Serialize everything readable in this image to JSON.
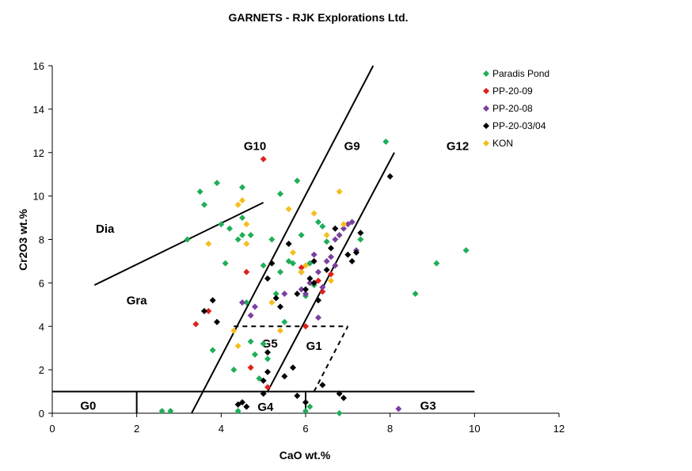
{
  "chart_data": {
    "type": "scatter",
    "title": "GARNETS - RJK Explorations Ltd.",
    "xlabel": "CaO wt.%",
    "ylabel": "Cr2O3 wt.%",
    "xlim": [
      0,
      12
    ],
    "ylim": [
      0,
      16
    ],
    "x_ticks": [
      0,
      2,
      4,
      6,
      8,
      10,
      12
    ],
    "y_ticks": [
      0,
      2,
      4,
      6,
      8,
      10,
      12,
      14,
      16
    ],
    "grid": false,
    "legend_position": "top-right",
    "series": [
      {
        "name": "Paradis Pond",
        "color": "#1fae56",
        "points": [
          [
            2.6,
            0.1
          ],
          [
            2.8,
            0.1
          ],
          [
            3.2,
            8.0
          ],
          [
            3.5,
            10.2
          ],
          [
            3.6,
            9.6
          ],
          [
            3.8,
            2.9
          ],
          [
            3.9,
            10.6
          ],
          [
            4.0,
            8.7
          ],
          [
            4.1,
            6.9
          ],
          [
            4.2,
            8.5
          ],
          [
            4.3,
            2.0
          ],
          [
            4.4,
            0.1
          ],
          [
            4.4,
            8.0
          ],
          [
            4.5,
            8.2
          ],
          [
            4.5,
            10.4
          ],
          [
            4.5,
            9.0
          ],
          [
            4.6,
            5.1
          ],
          [
            4.7,
            8.2
          ],
          [
            4.7,
            3.3
          ],
          [
            4.8,
            2.7
          ],
          [
            4.9,
            1.6
          ],
          [
            5.0,
            6.8
          ],
          [
            5.0,
            3.2
          ],
          [
            5.1,
            2.5
          ],
          [
            5.2,
            8.0
          ],
          [
            5.3,
            5.5
          ],
          [
            5.4,
            6.5
          ],
          [
            5.4,
            10.1
          ],
          [
            5.5,
            4.2
          ],
          [
            5.6,
            7.0
          ],
          [
            5.7,
            6.9
          ],
          [
            5.8,
            10.7
          ],
          [
            5.9,
            8.2
          ],
          [
            6.0,
            5.4
          ],
          [
            6.0,
            0.1
          ],
          [
            6.1,
            6.9
          ],
          [
            6.1,
            0.3
          ],
          [
            6.2,
            5.9
          ],
          [
            6.3,
            8.8
          ],
          [
            6.4,
            8.6
          ],
          [
            6.5,
            7.9
          ],
          [
            6.8,
            0.0
          ],
          [
            7.3,
            8.0
          ],
          [
            7.9,
            12.5
          ],
          [
            8.6,
            5.5
          ],
          [
            9.1,
            6.9
          ],
          [
            9.8,
            7.5
          ]
        ]
      },
      {
        "name": "PP-20-09",
        "color": "#e0201c",
        "points": [
          [
            3.4,
            4.1
          ],
          [
            3.7,
            4.7
          ],
          [
            4.6,
            6.5
          ],
          [
            4.7,
            2.1
          ],
          [
            5.0,
            11.7
          ],
          [
            5.1,
            1.2
          ],
          [
            5.9,
            6.7
          ],
          [
            6.0,
            4.0
          ],
          [
            6.3,
            6.1
          ],
          [
            6.4,
            5.6
          ],
          [
            6.6,
            6.4
          ]
        ]
      },
      {
        "name": "PP-20-08",
        "color": "#7a3fa0",
        "points": [
          [
            4.5,
            5.1
          ],
          [
            4.7,
            4.5
          ],
          [
            4.8,
            4.9
          ],
          [
            5.5,
            5.5
          ],
          [
            5.9,
            5.7
          ],
          [
            6.1,
            6.0
          ],
          [
            6.2,
            7.3
          ],
          [
            6.3,
            6.5
          ],
          [
            6.3,
            4.4
          ],
          [
            6.5,
            7.0
          ],
          [
            6.6,
            7.2
          ],
          [
            6.7,
            8.0
          ],
          [
            6.8,
            8.2
          ],
          [
            6.9,
            8.5
          ],
          [
            7.0,
            8.7
          ],
          [
            7.1,
            8.8
          ],
          [
            7.2,
            7.5
          ],
          [
            6.4,
            5.8
          ],
          [
            6.0,
            5.5
          ],
          [
            6.7,
            6.8
          ],
          [
            8.2,
            0.2
          ]
        ]
      },
      {
        "name": "PP-20-03/04",
        "color": "#000000",
        "points": [
          [
            3.6,
            4.7
          ],
          [
            3.8,
            5.2
          ],
          [
            3.9,
            4.2
          ],
          [
            4.4,
            0.4
          ],
          [
            4.5,
            0.5
          ],
          [
            4.6,
            0.3
          ],
          [
            5.0,
            1.5
          ],
          [
            5.1,
            2.8
          ],
          [
            5.1,
            1.9
          ],
          [
            5.2,
            6.9
          ],
          [
            5.3,
            5.3
          ],
          [
            5.4,
            4.9
          ],
          [
            5.5,
            1.7
          ],
          [
            5.6,
            7.8
          ],
          [
            5.7,
            2.1
          ],
          [
            5.8,
            5.5
          ],
          [
            5.8,
            0.8
          ],
          [
            5.9,
            6.5
          ],
          [
            6.0,
            5.7
          ],
          [
            6.1,
            6.2
          ],
          [
            6.2,
            7.0
          ],
          [
            6.3,
            5.2
          ],
          [
            6.4,
            1.3
          ],
          [
            6.5,
            6.6
          ],
          [
            6.6,
            7.6
          ],
          [
            6.7,
            8.5
          ],
          [
            6.8,
            0.9
          ],
          [
            6.9,
            0.7
          ],
          [
            7.0,
            7.3
          ],
          [
            7.1,
            7.0
          ],
          [
            7.2,
            7.4
          ],
          [
            7.3,
            8.3
          ],
          [
            8.0,
            10.9
          ],
          [
            5.1,
            6.2
          ],
          [
            6.2,
            6.0
          ],
          [
            6.0,
            0.5
          ],
          [
            5.0,
            0.9
          ]
        ]
      },
      {
        "name": "KON",
        "color": "#f5be1d",
        "points": [
          [
            3.7,
            7.8
          ],
          [
            4.3,
            3.8
          ],
          [
            4.4,
            3.1
          ],
          [
            4.4,
            9.6
          ],
          [
            4.5,
            9.8
          ],
          [
            4.6,
            8.7
          ],
          [
            4.6,
            7.8
          ],
          [
            5.4,
            3.8
          ],
          [
            5.6,
            9.4
          ],
          [
            5.7,
            7.4
          ],
          [
            5.9,
            6.5
          ],
          [
            6.0,
            6.8
          ],
          [
            6.2,
            9.2
          ],
          [
            6.5,
            8.2
          ],
          [
            6.6,
            6.1
          ],
          [
            6.8,
            10.2
          ],
          [
            6.9,
            8.7
          ],
          [
            5.2,
            5.1
          ]
        ]
      }
    ],
    "lines": [
      {
        "style": "solid",
        "points": [
          [
            1.0,
            5.9
          ],
          [
            5.0,
            9.7
          ]
        ]
      },
      {
        "style": "solid",
        "points": [
          [
            3.3,
            0.0
          ],
          [
            7.6,
            16.0
          ]
        ]
      },
      {
        "style": "solid",
        "points": [
          [
            5.1,
            1.0
          ],
          [
            8.1,
            12.0
          ]
        ]
      },
      {
        "style": "solid",
        "points": [
          [
            0.0,
            1.0
          ],
          [
            10.0,
            1.0
          ]
        ]
      },
      {
        "style": "solid",
        "points": [
          [
            2.0,
            0.0
          ],
          [
            2.0,
            1.0
          ]
        ]
      },
      {
        "style": "solid",
        "points": [
          [
            6.0,
            0.0
          ],
          [
            6.0,
            1.0
          ]
        ]
      },
      {
        "style": "dashed",
        "points": [
          [
            4.3,
            4.0
          ],
          [
            7.0,
            4.0
          ]
        ]
      },
      {
        "style": "dashed",
        "points": [
          [
            6.2,
            1.0
          ],
          [
            7.0,
            4.0
          ]
        ]
      }
    ],
    "region_labels": [
      {
        "text": "G10",
        "x": 4.8,
        "y": 12.3
      },
      {
        "text": "G9",
        "x": 7.1,
        "y": 12.3
      },
      {
        "text": "G12",
        "x": 9.6,
        "y": 12.3
      },
      {
        "text": "Dia",
        "x": 1.25,
        "y": 8.5
      },
      {
        "text": "Gra",
        "x": 2.0,
        "y": 5.2
      },
      {
        "text": "G5",
        "x": 5.15,
        "y": 3.2
      },
      {
        "text": "G1",
        "x": 6.2,
        "y": 3.1
      },
      {
        "text": "G0",
        "x": 0.85,
        "y": 0.35
      },
      {
        "text": "G4",
        "x": 5.05,
        "y": 0.3
      },
      {
        "text": "G3",
        "x": 8.9,
        "y": 0.35
      }
    ]
  }
}
